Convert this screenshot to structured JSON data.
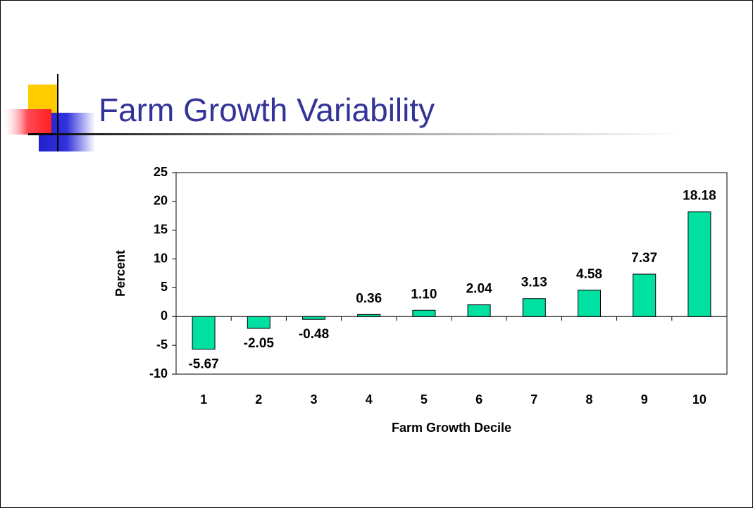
{
  "chart_data": {
    "type": "bar",
    "title": "Farm Growth Variability",
    "xlabel": "Farm Growth Decile",
    "ylabel": "Percent",
    "categories": [
      "1",
      "2",
      "3",
      "4",
      "5",
      "6",
      "7",
      "8",
      "9",
      "10"
    ],
    "values": [
      -5.67,
      -2.05,
      -0.48,
      0.36,
      1.1,
      2.04,
      3.13,
      4.58,
      7.37,
      18.18
    ],
    "value_labels": [
      "-5.67",
      "-2.05",
      "-0.48",
      "0.36",
      "1.10",
      "2.04",
      "3.13",
      "4.58",
      "7.37",
      "18.18"
    ],
    "color": "#00e0a0",
    "ylim": [
      -10,
      25
    ],
    "yticks": [
      -10,
      -5,
      0,
      5,
      10,
      15,
      20,
      25
    ]
  }
}
